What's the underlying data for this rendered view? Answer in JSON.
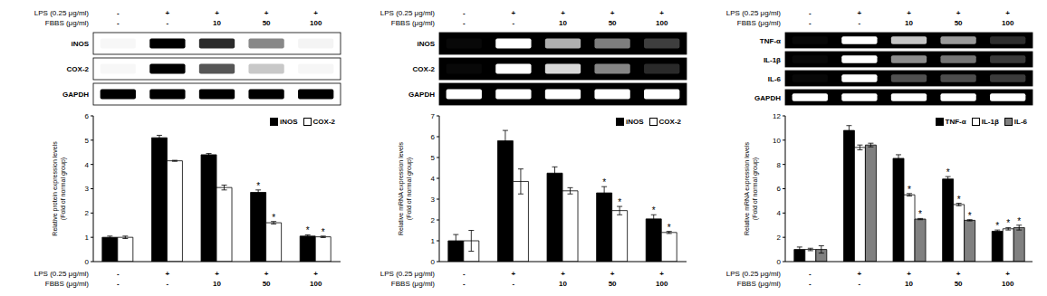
{
  "chart_data": [
    {
      "type": "bar",
      "conditions": [
        {
          "label": "LPS (0.25 μg/ml)",
          "values": [
            "-",
            "+",
            "+",
            "+",
            "+"
          ]
        },
        {
          "label": "FBBS (μg/ml)",
          "values": [
            "-",
            "-",
            "10",
            "50",
            "100"
          ]
        }
      ],
      "bands": [
        "iNOS",
        "COX-2",
        "GAPDH"
      ],
      "y_label": "Relative protein expression levels (Fold of normal group)",
      "categories": [
        null,
        null,
        null,
        null,
        null
      ],
      "series": [
        {
          "name": "iNOS",
          "color": "#000000",
          "values": [
            1.0,
            5.1,
            4.4,
            2.85,
            1.05
          ],
          "errors": [
            0.05,
            0.1,
            0.05,
            0.1,
            0.05
          ],
          "annotations": [
            null,
            null,
            null,
            "*",
            "*"
          ]
        },
        {
          "name": "COX-2",
          "color": "#ffffff",
          "values": [
            1.0,
            4.15,
            3.05,
            1.6,
            1.02
          ],
          "errors": [
            0.05,
            0.02,
            0.1,
            0.05,
            0.03
          ],
          "annotations": [
            null,
            null,
            null,
            "*",
            "*"
          ]
        }
      ],
      "ylim": [
        0,
        6
      ],
      "yticks": [
        0,
        1,
        2,
        3,
        4,
        5,
        6
      ],
      "legend": "upper right",
      "tick_labels": "y",
      "grid": false
    },
    {
      "type": "bar",
      "conditions": [
        {
          "label": "LPS (0.25 μg/ml)",
          "values": [
            "-",
            "+",
            "+",
            "+",
            "+"
          ]
        },
        {
          "label": "FBBS (μg/ml)",
          "values": [
            "-",
            "-",
            "10",
            "50",
            "100"
          ]
        }
      ],
      "bands": [
        "iNOS",
        "COX-2",
        "GAPDH"
      ],
      "y_label": "Relative mRNA expression levels (Fold of normal group)",
      "categories": [
        null,
        null,
        null,
        null,
        null
      ],
      "series": [
        {
          "name": "iNOS",
          "color": "#000000",
          "values": [
            1.0,
            5.8,
            4.25,
            3.3,
            2.05
          ],
          "errors": [
            0.3,
            0.5,
            0.3,
            0.3,
            0.2
          ],
          "annotations": [
            null,
            null,
            null,
            "*",
            "*"
          ]
        },
        {
          "name": "COX-2",
          "color": "#ffffff",
          "values": [
            1.0,
            3.85,
            3.4,
            2.45,
            1.4
          ],
          "errors": [
            0.5,
            0.6,
            0.15,
            0.2,
            0.05
          ],
          "annotations": [
            null,
            null,
            null,
            "*",
            "*"
          ]
        }
      ],
      "ylim": [
        0,
        7
      ],
      "yticks": [
        0,
        1,
        2,
        3,
        4,
        5,
        6,
        7
      ],
      "legend": "upper right",
      "tick_labels": "y",
      "grid": false
    },
    {
      "type": "bar",
      "conditions": [
        {
          "label": "LPS (0.25 μg/ml)",
          "values": [
            "-",
            "+",
            "+",
            "+",
            "+"
          ]
        },
        {
          "label": "FBBS (μg/ml)",
          "values": [
            "-",
            "-",
            "10",
            "50",
            "100"
          ]
        }
      ],
      "bands": [
        "TNF-α",
        "IL-1β",
        "IL-6",
        "GAPDH"
      ],
      "y_label": "Relative mRNA expression levels (Fold of normal group)",
      "categories": [
        null,
        null,
        null,
        null,
        null
      ],
      "series": [
        {
          "name": "TNF-α",
          "color": "#000000",
          "values": [
            1.0,
            10.8,
            8.5,
            6.8,
            2.5
          ],
          "errors": [
            0.2,
            0.4,
            0.3,
            0.2,
            0.1
          ],
          "annotations": [
            null,
            null,
            null,
            "*",
            "*"
          ]
        },
        {
          "name": "IL-1β",
          "color": "#ffffff",
          "values": [
            1.0,
            9.4,
            5.5,
            4.7,
            2.7
          ],
          "errors": [
            0.1,
            0.2,
            0.1,
            0.1,
            0.1
          ],
          "annotations": [
            null,
            null,
            "*",
            "*",
            "*"
          ]
        },
        {
          "name": "IL-6",
          "color": "#808080",
          "values": [
            1.0,
            9.6,
            3.5,
            3.4,
            2.8
          ],
          "errors": [
            0.3,
            0.15,
            0.05,
            0.05,
            0.2
          ],
          "annotations": [
            null,
            null,
            "*",
            "*",
            "*"
          ]
        }
      ],
      "ylim": [
        0,
        12
      ],
      "yticks": [
        0,
        2,
        4,
        6,
        8,
        10,
        12
      ],
      "legend": "upper right",
      "tick_labels": "y",
      "grid": false
    }
  ]
}
